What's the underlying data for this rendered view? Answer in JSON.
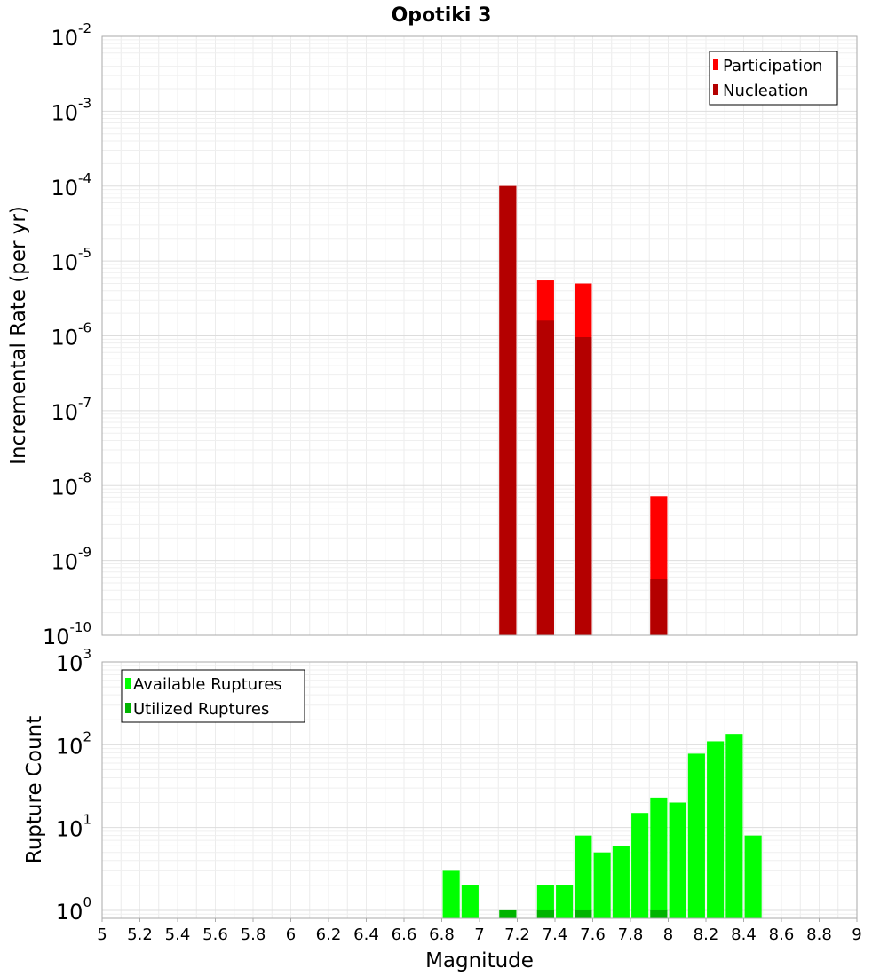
{
  "title": "Opotiki 3",
  "chart_data": [
    {
      "type": "bar",
      "ylabel": "Incremental Rate (per yr)",
      "xlabel": "",
      "x_range": [
        5,
        9
      ],
      "y_scale": "log",
      "ylim": [
        1e-10,
        0.01
      ],
      "grid": true,
      "legend_position": "top-right",
      "bar_width": 0.09,
      "series": [
        {
          "name": "Participation",
          "color": "#ff0000",
          "x": [
            7.15,
            7.35,
            7.55,
            7.95
          ],
          "values": [
            0.0001,
            5.5e-06,
            5e-06,
            7.2e-09
          ]
        },
        {
          "name": "Nucleation",
          "color": "#b40000",
          "x": [
            7.15,
            7.35,
            7.55,
            7.95
          ],
          "values": [
            0.0001,
            1.6e-06,
            9.6e-07,
            5.6e-10
          ]
        }
      ]
    },
    {
      "type": "bar",
      "ylabel": "Rupture Count",
      "xlabel": "Magnitude",
      "x_range": [
        5,
        9
      ],
      "y_scale": "log",
      "ylim": [
        0.8,
        1000
      ],
      "grid": true,
      "legend_position": "top-left",
      "bar_width": 0.09,
      "xticks": [
        "5",
        "5.2",
        "5.4",
        "5.6",
        "5.8",
        "6",
        "6.2",
        "6.4",
        "6.6",
        "6.8",
        "7",
        "7.2",
        "7.4",
        "7.6",
        "7.8",
        "8",
        "8.2",
        "8.4",
        "8.6",
        "8.8",
        "9"
      ],
      "series": [
        {
          "name": "Available Ruptures",
          "color": "#00ff00",
          "x": [
            6.85,
            6.95,
            7.15,
            7.35,
            7.45,
            7.55,
            7.65,
            7.75,
            7.85,
            7.95,
            8.05,
            8.15,
            8.25,
            8.35,
            8.45
          ],
          "values": [
            3,
            2,
            1,
            2,
            2,
            8,
            5,
            6,
            15,
            23,
            20,
            78,
            110,
            135,
            8
          ]
        },
        {
          "name": "Utilized Ruptures",
          "color": "#00b400",
          "x": [
            7.15,
            7.35,
            7.55,
            7.95
          ],
          "values": [
            1,
            1,
            1,
            1
          ]
        }
      ]
    }
  ]
}
